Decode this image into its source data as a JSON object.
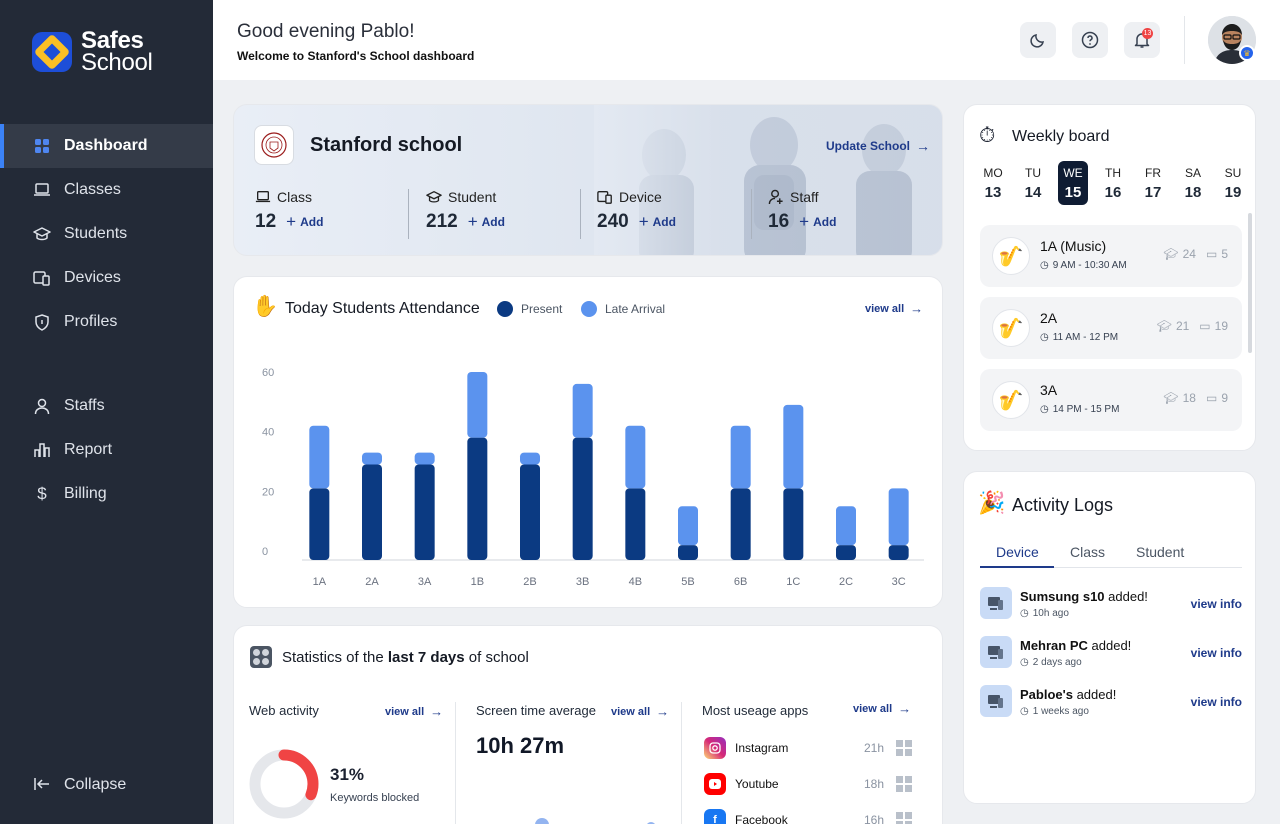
{
  "brand": {
    "line1": "Safes",
    "line2": "School"
  },
  "sidebar": {
    "items": [
      {
        "label": "Dashboard",
        "icon": "grid-icon",
        "active": true
      },
      {
        "label": "Classes",
        "icon": "laptop-icon"
      },
      {
        "label": "Students",
        "icon": "graduation-cap-icon"
      },
      {
        "label": "Devices",
        "icon": "devices-icon"
      },
      {
        "label": "Profiles",
        "icon": "shield-icon"
      }
    ],
    "items2": [
      {
        "label": "Staffs",
        "icon": "user-icon"
      },
      {
        "label": "Report",
        "icon": "bar-chart-icon"
      },
      {
        "label": "Billing",
        "icon": "dollar-icon"
      }
    ],
    "collapse_label": "Collapse"
  },
  "header": {
    "greeting": "Good evening Pablo!",
    "welcome": "Welcome to Stanford's School dashboard",
    "notification_count": "13"
  },
  "school": {
    "name": "Stanford school",
    "update_label": "Update School",
    "stats": [
      {
        "label": "Class",
        "value": "12",
        "add": "Add"
      },
      {
        "label": "Student",
        "value": "212",
        "add": "Add"
      },
      {
        "label": "Device",
        "value": "240",
        "add": "Add"
      },
      {
        "label": "Staff",
        "value": "16",
        "add": "Add"
      }
    ]
  },
  "attendance": {
    "title": "Today Students Attendance",
    "view_all": "view all",
    "legend": {
      "present": "Present",
      "late": "Late Arrival"
    },
    "colors": {
      "present": "#0b3a82",
      "late": "#5b93ee"
    }
  },
  "chart_data": {
    "type": "bar",
    "stacked": true,
    "categories": [
      "1A",
      "2A",
      "3A",
      "1B",
      "2B",
      "3B",
      "4B",
      "5B",
      "6B",
      "1C",
      "2C",
      "3C"
    ],
    "series": [
      {
        "name": "Present",
        "values": [
          24,
          32,
          32,
          41,
          32,
          41,
          24,
          5,
          24,
          24,
          5,
          5
        ]
      },
      {
        "name": "Late Arrival",
        "values": [
          21,
          4,
          4,
          22,
          4,
          18,
          21,
          13,
          21,
          28,
          13,
          19
        ]
      }
    ],
    "yticks": [
      0,
      20,
      40,
      60
    ],
    "ylim": [
      0,
      64
    ],
    "grid": false,
    "legend": "top"
  },
  "statistics": {
    "title_pre": "Statistics of the ",
    "title_bold": "last 7 days",
    "title_post": " of school",
    "web": {
      "title": "Web activity",
      "view_all": "view all",
      "percent": "31%",
      "label": "Keywords blocked",
      "fraction": 0.31
    },
    "screen": {
      "title": "Screen time average",
      "view_all": "view all",
      "value": "10h 27m"
    },
    "apps": {
      "title": "Most useage apps",
      "view_all": "view all",
      "items": [
        {
          "name": "Instagram",
          "time": "21h",
          "icon": "instagram-icon",
          "color": "#d6249f"
        },
        {
          "name": "Youtube",
          "time": "18h",
          "icon": "youtube-icon",
          "color": "#ff0000"
        },
        {
          "name": "Facebook",
          "time": "16h",
          "icon": "facebook-icon",
          "color": "#1877f2"
        }
      ]
    }
  },
  "weekly": {
    "title": "Weekly board",
    "days": [
      {
        "name": "MO",
        "date": "13"
      },
      {
        "name": "TU",
        "date": "14"
      },
      {
        "name": "WE",
        "date": "15",
        "active": true
      },
      {
        "name": "TH",
        "date": "16"
      },
      {
        "name": "FR",
        "date": "17"
      },
      {
        "name": "SA",
        "date": "18"
      },
      {
        "name": "SU",
        "date": "19"
      }
    ],
    "classes": [
      {
        "name": "1A (Music)",
        "time": "9 AM - 10:30 AM",
        "students": "24",
        "devices": "5"
      },
      {
        "name": "2A",
        "time": "11 AM - 12 PM",
        "students": "21",
        "devices": "19"
      },
      {
        "name": "3A",
        "time": "14 PM - 15 PM",
        "students": "18",
        "devices": "9"
      }
    ]
  },
  "activity": {
    "title": "Activity Logs",
    "tabs": [
      "Device",
      "Class",
      "Student"
    ],
    "logs": [
      {
        "name": "Sumsung s10",
        "suffix": " added!",
        "time": "10h ago",
        "link": "view info"
      },
      {
        "name": "Mehran PC",
        "suffix": " added!",
        "time": "2 days ago",
        "link": "view info"
      },
      {
        "name": "Pabloe's",
        "suffix": " added!",
        "time": "1 weeks ago",
        "link": "view info"
      }
    ]
  }
}
